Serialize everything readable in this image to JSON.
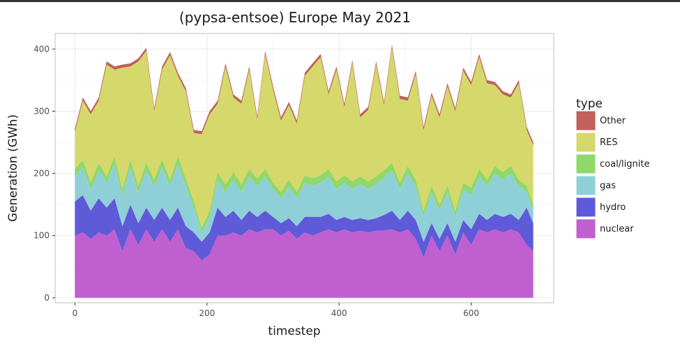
{
  "chart_data": {
    "type": "area",
    "stacked": true,
    "title": "(pypsa-entsoe) Europe May 2021",
    "xlabel": "timestep",
    "ylabel": "Generation (GWh)",
    "xlim": [
      -30,
      725
    ],
    "ylim": [
      -8,
      425
    ],
    "x_ticks": [
      0,
      200,
      400,
      600
    ],
    "y_ticks": [
      0,
      100,
      200,
      300,
      400
    ],
    "grid": true,
    "legend_title": "type",
    "legend_position": "right",
    "legend": [
      {
        "name": "Other",
        "color": "#c0605a"
      },
      {
        "name": "RES",
        "color": "#d5d86a"
      },
      {
        "name": "coal/lignite",
        "color": "#8fd86a"
      },
      {
        "name": "gas",
        "color": "#8fd0d8"
      },
      {
        "name": "hydro",
        "color": "#5f5ad8"
      },
      {
        "name": "nuclear",
        "color": "#c05fcf"
      }
    ],
    "x": [
      0,
      12,
      24,
      36,
      48,
      60,
      72,
      84,
      96,
      108,
      120,
      132,
      144,
      156,
      168,
      180,
      192,
      204,
      216,
      228,
      240,
      252,
      264,
      276,
      288,
      300,
      312,
      324,
      336,
      348,
      360,
      372,
      384,
      396,
      408,
      420,
      432,
      444,
      456,
      468,
      480,
      492,
      504,
      516,
      528,
      540,
      552,
      564,
      576,
      588,
      600,
      612,
      624,
      636,
      648,
      660,
      672,
      684,
      694
    ],
    "series": [
      {
        "name": "nuclear",
        "values": [
          100,
          105,
          95,
          105,
          100,
          110,
          75,
          110,
          85,
          110,
          90,
          110,
          90,
          110,
          80,
          75,
          60,
          70,
          100,
          100,
          105,
          100,
          110,
          105,
          110,
          110,
          100,
          108,
          95,
          105,
          100,
          105,
          110,
          105,
          110,
          105,
          108,
          105,
          108,
          108,
          110,
          105,
          110,
          95,
          65,
          100,
          75,
          100,
          70,
          105,
          85,
          110,
          105,
          110,
          105,
          110,
          105,
          85,
          75
        ]
      },
      {
        "name": "hydro",
        "values": [
          55,
          60,
          45,
          55,
          45,
          50,
          40,
          40,
          35,
          35,
          35,
          35,
          35,
          35,
          35,
          30,
          30,
          35,
          45,
          30,
          35,
          25,
          30,
          25,
          30,
          20,
          20,
          20,
          20,
          25,
          30,
          25,
          25,
          20,
          20,
          20,
          20,
          20,
          20,
          25,
          30,
          20,
          30,
          30,
          25,
          20,
          20,
          20,
          20,
          20,
          25,
          25,
          20,
          25,
          25,
          25,
          20,
          60,
          45
        ]
      },
      {
        "name": "gas",
        "values": [
          40,
          45,
          35,
          45,
          40,
          55,
          50,
          60,
          50,
          60,
          55,
          65,
          55,
          70,
          65,
          40,
          15,
          25,
          45,
          40,
          50,
          45,
          55,
          50,
          55,
          45,
          40,
          50,
          45,
          55,
          50,
          55,
          60,
          50,
          55,
          50,
          55,
          50,
          55,
          60,
          65,
          50,
          60,
          55,
          40,
          50,
          45,
          50,
          40,
          50,
          55,
          60,
          55,
          65,
          60,
          65,
          55,
          25,
          20
        ]
      },
      {
        "name": "coal/lignite",
        "values": [
          12,
          12,
          10,
          12,
          10,
          12,
          10,
          12,
          10,
          12,
          10,
          12,
          10,
          12,
          12,
          10,
          8,
          10,
          12,
          12,
          12,
          12,
          12,
          12,
          12,
          10,
          10,
          12,
          10,
          12,
          12,
          12,
          12,
          12,
          12,
          12,
          12,
          12,
          12,
          12,
          12,
          10,
          12,
          10,
          10,
          10,
          10,
          10,
          10,
          10,
          12,
          12,
          10,
          12,
          12,
          12,
          10,
          10,
          10
        ]
      },
      {
        "name": "RES",
        "values": [
          60,
          95,
          110,
          100,
          180,
          140,
          195,
          150,
          200,
          180,
          110,
          145,
          200,
          130,
          140,
          110,
          150,
          155,
          110,
          190,
          120,
          130,
          160,
          95,
          185,
          150,
          115,
          120,
          110,
          160,
          180,
          190,
          120,
          180,
          110,
          190,
          95,
          115,
          180,
          105,
          185,
          135,
          105,
          170,
          130,
          145,
          140,
          160,
          160,
          180,
          165,
          180,
          155,
          130,
          125,
          110,
          155,
          90,
          95
        ]
      },
      {
        "name": "Other",
        "values": [
          5,
          5,
          5,
          5,
          5,
          5,
          5,
          5,
          5,
          5,
          5,
          5,
          5,
          5,
          5,
          5,
          5,
          5,
          5,
          5,
          5,
          5,
          5,
          5,
          5,
          5,
          5,
          5,
          5,
          5,
          5,
          5,
          5,
          5,
          5,
          5,
          5,
          5,
          5,
          5,
          5,
          5,
          5,
          5,
          5,
          5,
          5,
          5,
          5,
          5,
          5,
          5,
          5,
          5,
          5,
          5,
          5,
          5,
          5
        ]
      }
    ]
  }
}
